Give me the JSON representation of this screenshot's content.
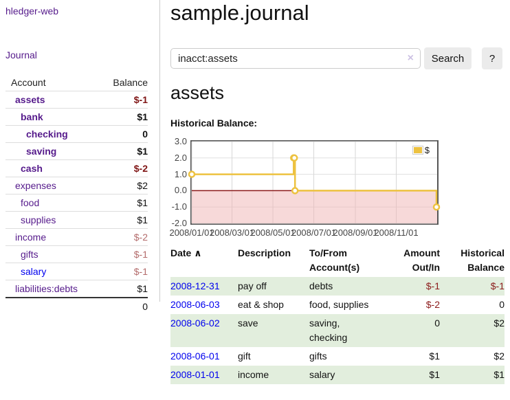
{
  "sidebar": {
    "brand": "hledger-web",
    "nav": {
      "journal_label": "Journal"
    },
    "accounts_table": {
      "headers": {
        "account": "Account",
        "balance": "Balance"
      },
      "rows": [
        {
          "name": "assets",
          "level": 1,
          "bold": true,
          "balance": "$-1",
          "balance_style": "neg-strong"
        },
        {
          "name": "bank",
          "level": 2,
          "bold": true,
          "balance": "$1",
          "balance_style": "pos"
        },
        {
          "name": "checking",
          "level": 3,
          "bold": true,
          "balance": "0",
          "balance_style": "pos"
        },
        {
          "name": "saving",
          "level": 3,
          "bold": true,
          "balance": "$1",
          "balance_style": "pos"
        },
        {
          "name": "cash",
          "level": 2,
          "bold": true,
          "balance": "$-2",
          "balance_style": "neg-strong"
        },
        {
          "name": "expenses",
          "level": 1,
          "bold": false,
          "balance": "$2",
          "balance_style": "pos"
        },
        {
          "name": "food",
          "level": 2,
          "bold": false,
          "balance": "$1",
          "balance_style": "pos"
        },
        {
          "name": "supplies",
          "level": 2,
          "bold": false,
          "balance": "$1",
          "balance_style": "pos"
        },
        {
          "name": "income",
          "level": 1,
          "bold": false,
          "balance": "$-2",
          "balance_style": "neg-soft"
        },
        {
          "name": "gifts",
          "level": 2,
          "bold": false,
          "balance": "$-1",
          "balance_style": "neg-soft"
        },
        {
          "name": "salary",
          "level": 2,
          "bold": false,
          "balance": "$-1",
          "balance_style": "neg-soft",
          "link_color": "blue"
        },
        {
          "name": "liabilities:debts",
          "level": 1,
          "bold": false,
          "balance": "$1",
          "balance_style": "pos"
        }
      ],
      "total": "0"
    }
  },
  "header": {
    "title": "sample.journal"
  },
  "search": {
    "query": "inacct:assets",
    "clear_glyph": "×",
    "button_label": "Search",
    "help_label": "?"
  },
  "account_page": {
    "heading": "assets",
    "chart_label": "Historical Balance:"
  },
  "chart_data": {
    "type": "line",
    "step": true,
    "title": "Historical Balance",
    "series": [
      {
        "name": "$",
        "color": "#edc240",
        "x": [
          "2008-01-01",
          "2008-06-01",
          "2008-06-02",
          "2008-06-03",
          "2008-12-31"
        ],
        "y": [
          1,
          2,
          2,
          0,
          -1
        ]
      }
    ],
    "x_domain": [
      "2008-01-01",
      "2009-01-01"
    ],
    "x_ticks": [
      {
        "date": "2008-01-01",
        "label": "2008/01/01"
      },
      {
        "date": "2008-03-01",
        "label": "2008/03/01"
      },
      {
        "date": "2008-05-01",
        "label": "2008/05/01"
      },
      {
        "date": "2008-07-01",
        "label": "2008/07/01"
      },
      {
        "date": "2008-09-01",
        "label": "2008/09/01"
      },
      {
        "date": "2008-11-01",
        "label": "2008/11/01"
      }
    ],
    "y_ticks": [
      {
        "value": 3,
        "label": "3.0"
      },
      {
        "value": 2,
        "label": "2.0"
      },
      {
        "value": 1,
        "label": "1.0"
      },
      {
        "value": 0,
        "label": "0.0"
      },
      {
        "value": -1,
        "label": "-1.0"
      },
      {
        "value": -2,
        "label": "-2.0"
      }
    ],
    "ylim": [
      -2,
      3
    ],
    "grid": true,
    "legend_position": "top-right",
    "legend_label": "$",
    "negative_region": {
      "below": 0,
      "color": "rgba(240,180,180,0.5)"
    },
    "zero_line_color": "#8b1a1a"
  },
  "register_table": {
    "headers": {
      "date": "Date",
      "sort_indicator": "∧",
      "description": "Description",
      "tofrom": "To/From Account(s)",
      "amount": "Amount Out/In",
      "balance": "Historical Balance"
    },
    "rows": [
      {
        "date": "2008-12-31",
        "description": "pay off",
        "tofrom": "debts",
        "amount": "$-1",
        "amount_neg": true,
        "balance": "$-1",
        "balance_neg": true,
        "striped": true
      },
      {
        "date": "2008-06-03",
        "description": "eat & shop",
        "tofrom": "food, supplies",
        "amount": "$-2",
        "amount_neg": true,
        "balance": "0",
        "balance_neg": false,
        "striped": false
      },
      {
        "date": "2008-06-02",
        "description": "save",
        "tofrom": "saving, checking",
        "amount": "0",
        "amount_neg": false,
        "balance": "$2",
        "balance_neg": false,
        "striped": true
      },
      {
        "date": "2008-06-01",
        "description": "gift",
        "tofrom": "gifts",
        "amount": "$1",
        "amount_neg": false,
        "balance": "$2",
        "balance_neg": false,
        "striped": false
      },
      {
        "date": "2008-01-01",
        "description": "income",
        "tofrom": "salary",
        "amount": "$1",
        "amount_neg": false,
        "balance": "$1",
        "balance_neg": false,
        "striped": true
      }
    ]
  },
  "colors": {
    "link_purple": "#551a8b",
    "link_blue": "#0000ee",
    "negative_strong": "#7f1414",
    "negative_soft": "#b36b6b",
    "negative_register": "#8b1a1a",
    "row_stripe_green": "#e2eedd",
    "series_gold": "#edc240",
    "negative_region_pink": "#f7d9d9",
    "zero_line_red": "#8b1a1a"
  }
}
